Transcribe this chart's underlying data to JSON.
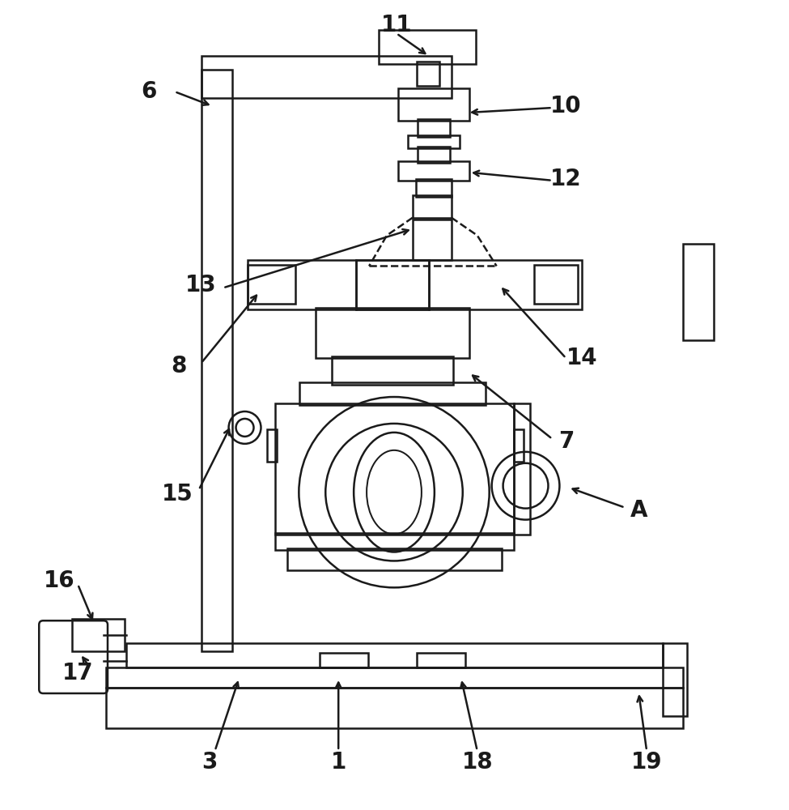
{
  "bg_color": "#ffffff",
  "line_color": "#1a1a1a",
  "line_width": 1.8,
  "fig_width": 9.75,
  "fig_height": 10.0,
  "label_fontsize": 20
}
